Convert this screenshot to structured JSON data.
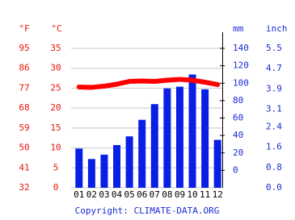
{
  "chart_data": {
    "type": "combo",
    "y_f_label": "°F",
    "y_label": "°C",
    "y2_label": "mm",
    "y3_label": "inch",
    "caption": "Copyright: CLIMATE-DATA.ORG",
    "categories": [
      "01",
      "02",
      "03",
      "04",
      "05",
      "06",
      "07",
      "08",
      "09",
      "10",
      "11",
      "12"
    ],
    "series": [
      {
        "type": "bar",
        "color": "#0a1fe6",
        "axis": "y2",
        "values": [
          25,
          13,
          18,
          29,
          39,
          58,
          76,
          94,
          96,
          110,
          93,
          35
        ]
      },
      {
        "type": "line",
        "color": "#ff0000",
        "axis": "y",
        "values": [
          25.3,
          25.2,
          25.5,
          26.0,
          26.7,
          26.8,
          26.7,
          27.0,
          27.2,
          27.0,
          26.5,
          25.9
        ]
      }
    ],
    "ylim": [
      0,
      35
    ],
    "yticks": [
      0,
      5,
      10,
      15,
      20,
      25,
      30,
      35
    ],
    "y_f_lim": [
      32,
      95
    ],
    "y_f_ticks": [
      32,
      41,
      50,
      59,
      68,
      77,
      86,
      95
    ],
    "y2lim": [
      -20,
      140
    ],
    "y2ticks": [
      0,
      20,
      40,
      60,
      80,
      100,
      120,
      140
    ],
    "y3lim": [
      0,
      5.5
    ],
    "y3ticks": [
      {
        "value": 0,
        "label": "0.0"
      },
      0.8,
      1.6,
      2.4,
      3.1,
      3.9,
      4.7,
      5.5
    ],
    "grid": true
  }
}
